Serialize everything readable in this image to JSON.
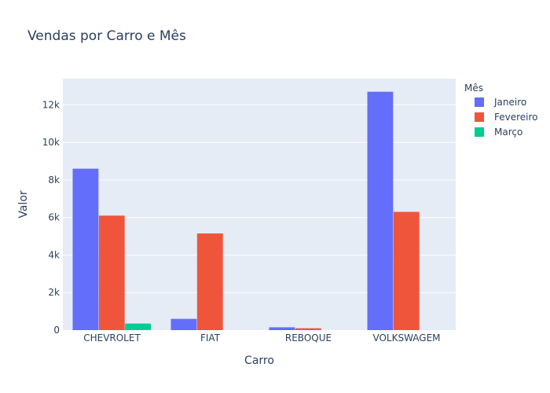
{
  "chart_data": {
    "type": "bar",
    "title": "Vendas por Carro e Mês",
    "xlabel": "Carro",
    "ylabel": "Valor",
    "categories": [
      "CHEVROLET",
      "FIAT",
      "REBOQUE",
      "VOLKSWAGEM"
    ],
    "series": [
      {
        "name": "Janeiro",
        "color": "#636efa",
        "values": [
          8600,
          600,
          150,
          12700
        ]
      },
      {
        "name": "Fevereiro",
        "color": "#ef553b",
        "values": [
          6100,
          5150,
          100,
          6300
        ]
      },
      {
        "name": "Março",
        "color": "#00cc96",
        "values": [
          350,
          0,
          0,
          0
        ]
      }
    ],
    "ylim": [
      0,
      13400
    ],
    "yticks": [
      0,
      2000,
      4000,
      6000,
      8000,
      10000,
      12000
    ],
    "ytick_labels": [
      "0",
      "2k",
      "4k",
      "6k",
      "8k",
      "10k",
      "12k"
    ],
    "legend_title": "Mês",
    "legend_position": "top-right",
    "plot_background": "#e5ecf6",
    "grid": true
  }
}
